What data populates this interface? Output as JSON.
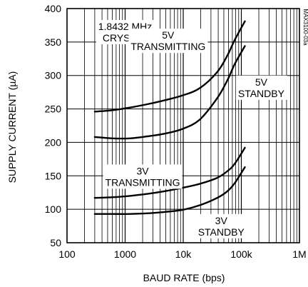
{
  "chart_data": {
    "type": "line",
    "title": "",
    "xlabel": "BAUD RATE (bps)",
    "ylabel": "SUPPLY CURRENT (µA)",
    "x_scale": "log",
    "xlim": [
      100,
      1000000
    ],
    "ylim": [
      50,
      400
    ],
    "x_ticks": [
      {
        "value": 100,
        "label": "100"
      },
      {
        "value": 1000,
        "label": "1000"
      },
      {
        "value": 10000,
        "label": "10k"
      },
      {
        "value": 100000,
        "label": "100k"
      },
      {
        "value": 1000000,
        "label": "1M"
      }
    ],
    "y_ticks": [
      50,
      100,
      150,
      200,
      250,
      300,
      350,
      400
    ],
    "grid": true,
    "side_code": "MAX3100-03a",
    "annotations": [
      {
        "text": "1.8432 MHz\nCRYSTAL",
        "x": 1000,
        "y": 368
      },
      {
        "text": "5V\nTRANSMITTING",
        "x": 5500,
        "y": 355
      },
      {
        "text": "5V\nSTANDBY",
        "x": 220000,
        "y": 285
      },
      {
        "text": "3V\nTRANSMITTING",
        "x": 2000,
        "y": 152
      },
      {
        "text": "3V\nSTANDBY",
        "x": 45000,
        "y": 78
      }
    ],
    "series": [
      {
        "name": "5V TRANSMITTING",
        "x": [
          300,
          600,
          1200,
          2400,
          4800,
          9600,
          19200,
          38400,
          57600,
          76800,
          115200
        ],
        "y": [
          246,
          248,
          252,
          257,
          263,
          270,
          281,
          305,
          330,
          353,
          381
        ]
      },
      {
        "name": "5V STANDBY",
        "x": [
          300,
          600,
          1200,
          2400,
          4800,
          9600,
          19200,
          38400,
          57600,
          76800,
          115200
        ],
        "y": [
          208,
          206,
          206,
          209,
          213,
          220,
          234,
          266,
          293,
          317,
          344
        ]
      },
      {
        "name": "3V TRANSMITTING",
        "x": [
          300,
          600,
          1200,
          2400,
          4800,
          9600,
          19200,
          38400,
          57600,
          76800,
          115200
        ],
        "y": [
          117,
          118,
          120,
          123,
          127,
          132,
          138,
          147,
          157,
          168,
          192
        ]
      },
      {
        "name": "3V STANDBY",
        "x": [
          300,
          600,
          1200,
          2400,
          4800,
          9600,
          19200,
          38400,
          57600,
          76800,
          115200
        ],
        "y": [
          93,
          93,
          93,
          94,
          96,
          99,
          106,
          117,
          127,
          139,
          163
        ]
      }
    ]
  }
}
